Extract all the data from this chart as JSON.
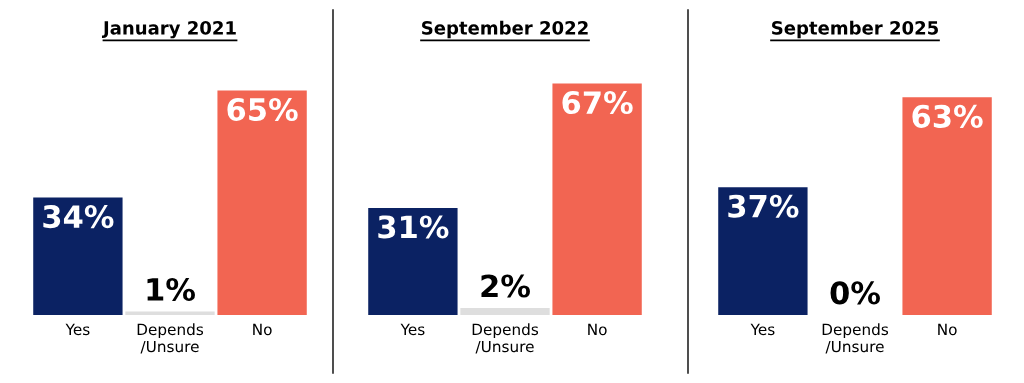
{
  "chart_data": [
    {
      "type": "bar",
      "title": "January 2021",
      "categories": [
        "Yes",
        "Depends\n/Unsure",
        "No"
      ],
      "values": [
        34,
        1,
        65
      ],
      "colors": [
        "#0b2263",
        "#dedede",
        "#f26552"
      ],
      "value_labels": [
        "34%",
        "1%",
        "65%"
      ]
    },
    {
      "type": "bar",
      "title": "September 2022",
      "categories": [
        "Yes",
        "Depends\n/Unsure",
        "No"
      ],
      "values": [
        31,
        2,
        67
      ],
      "colors": [
        "#0b2263",
        "#dedede",
        "#f26552"
      ],
      "value_labels": [
        "31%",
        "2%",
        "67%"
      ]
    },
    {
      "type": "bar",
      "title": "September 2025",
      "categories": [
        "Yes",
        "Depends\n/Unsure",
        "No"
      ],
      "values": [
        37,
        0,
        63
      ],
      "colors": [
        "#0b2263",
        "#dedede",
        "#f26552"
      ],
      "value_labels": [
        "37%",
        "0%",
        "63%"
      ]
    }
  ]
}
